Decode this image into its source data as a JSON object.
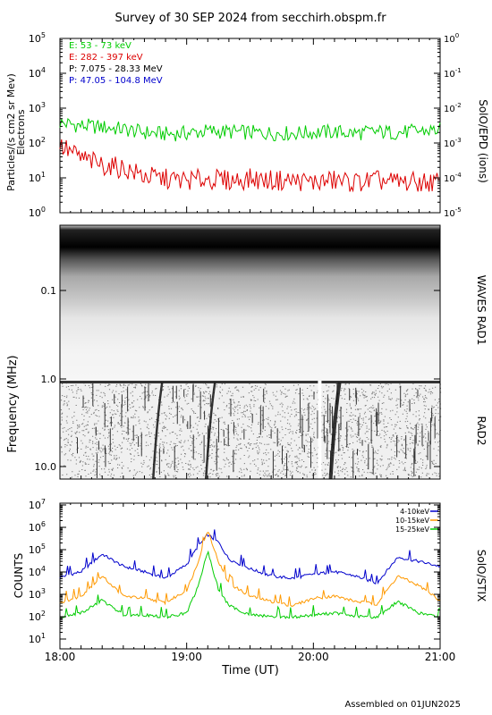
{
  "title": "Survey of 30 SEP 2024 from secchirh.obspm.fr",
  "footer": "Assembled on 01JUN2025",
  "chart_data": [
    {
      "type": "line",
      "panel": "particles",
      "ylabel": "Particles/(s cm2 sr Mev)",
      "ylabel2": "Electrons",
      "right_label": "SolO/EPD (ions)",
      "yscale": "log",
      "ylim": [
        1,
        100000
      ],
      "yticks": [
        "10^0",
        "10^1",
        "10^2",
        "10^3",
        "10^4",
        "10^5"
      ],
      "yticks_right": [
        "10^-5",
        "10^-4",
        "10^-3",
        "10^-2",
        "10^-1",
        "10^0"
      ],
      "xlim": [
        "18:00",
        "21:00"
      ],
      "legend": [
        {
          "label": "E: 53 - 73 keV",
          "color": "#00cc00"
        },
        {
          "label": "E: 282 - 397 keV",
          "color": "#dd0000"
        },
        {
          "label": "P: 7.075 - 28.33 MeV",
          "color": "#000000"
        },
        {
          "label": "P: 47.05 - 104.8 MeV",
          "color": "#0000cc"
        }
      ],
      "series": [
        {
          "name": "E: 53 - 73 keV",
          "color": "#00cc00",
          "x": [
            "18:00",
            "18:10",
            "18:20",
            "18:30",
            "18:40",
            "18:50",
            "19:00",
            "19:10",
            "19:20",
            "19:30",
            "19:40",
            "19:50",
            "20:00",
            "20:10",
            "20:20",
            "20:30",
            "20:40",
            "20:50",
            "21:00"
          ],
          "values": [
            400,
            330,
            300,
            260,
            210,
            190,
            200,
            230,
            220,
            210,
            200,
            200,
            210,
            220,
            200,
            220,
            210,
            230,
            250
          ]
        },
        {
          "name": "E: 282 - 397 keV",
          "color": "#dd0000",
          "x": [
            "18:00",
            "18:10",
            "18:20",
            "18:30",
            "18:40",
            "18:50",
            "19:00",
            "19:10",
            "19:20",
            "19:30",
            "19:40",
            "19:50",
            "20:00",
            "20:10",
            "20:20",
            "20:30",
            "20:40",
            "20:50",
            "21:00"
          ],
          "values": [
            90,
            40,
            25,
            20,
            12,
            10,
            9,
            10,
            9,
            10,
            9,
            9,
            8,
            9,
            8,
            9,
            8,
            8,
            8
          ]
        }
      ]
    },
    {
      "type": "heatmap",
      "panel": "radio",
      "ylabel": "Frequency (MHz)",
      "right_labels": [
        "WAVES RAD1",
        "RAD2"
      ],
      "yscale": "log",
      "yticks": [
        "0.1",
        "1.0",
        "10.0"
      ],
      "xlim": [
        "18:00",
        "21:00"
      ],
      "bursts": [
        "18:45",
        "19:10",
        "20:09"
      ],
      "data_gap": "20:03"
    },
    {
      "type": "line",
      "panel": "xray",
      "ylabel": "COUNTS",
      "right_label": "SolO/STIX",
      "yscale": "log",
      "ylim": [
        10,
        10000000
      ],
      "yticks": [
        "10^1",
        "10^2",
        "10^3",
        "10^4",
        "10^5",
        "10^6",
        "10^7"
      ],
      "xlabel": "Time (UT)",
      "xticks": [
        "18:00",
        "19:00",
        "20:00",
        "21:00"
      ],
      "legend_position": "top-right",
      "series": [
        {
          "name": "4-10keV",
          "color": "#0000cc",
          "x": [
            "18:00",
            "18:10",
            "18:20",
            "18:30",
            "18:40",
            "18:50",
            "19:00",
            "19:05",
            "19:10",
            "19:15",
            "19:20",
            "19:30",
            "19:40",
            "19:50",
            "20:00",
            "20:10",
            "20:20",
            "20:30",
            "20:40",
            "20:50",
            "21:00"
          ],
          "values": [
            9000,
            15000,
            80000,
            25000,
            15000,
            8000,
            30000,
            150000,
            500000,
            250000,
            50000,
            20000,
            10000,
            8000,
            12000,
            15000,
            10000,
            5000,
            60000,
            40000,
            25000
          ]
        },
        {
          "name": "10-15keV",
          "color": "#ff9900",
          "x": [
            "18:00",
            "18:10",
            "18:20",
            "18:30",
            "18:40",
            "18:50",
            "19:00",
            "19:05",
            "19:10",
            "19:15",
            "19:20",
            "19:30",
            "19:40",
            "19:50",
            "20:00",
            "20:10",
            "20:20",
            "20:30",
            "20:40",
            "20:50",
            "21:00"
          ],
          "values": [
            800,
            1500,
            10000,
            1500,
            1200,
            800,
            2500,
            30000,
            800000,
            40000,
            5000,
            1500,
            900,
            600,
            1200,
            1500,
            900,
            700,
            10000,
            4000,
            1000
          ]
        },
        {
          "name": "15-25keV",
          "color": "#00cc00",
          "x": [
            "18:00",
            "18:10",
            "18:20",
            "18:30",
            "18:40",
            "18:50",
            "19:00",
            "19:05",
            "19:10",
            "19:15",
            "19:20",
            "19:30",
            "19:40",
            "19:50",
            "20:00",
            "20:10",
            "20:20",
            "20:30",
            "20:40",
            "20:50",
            "21:00"
          ],
          "values": [
            200,
            300,
            1000,
            250,
            250,
            200,
            300,
            3000,
            100000,
            3000,
            600,
            250,
            220,
            200,
            250,
            300,
            220,
            200,
            900,
            300,
            200
          ]
        }
      ]
    }
  ]
}
